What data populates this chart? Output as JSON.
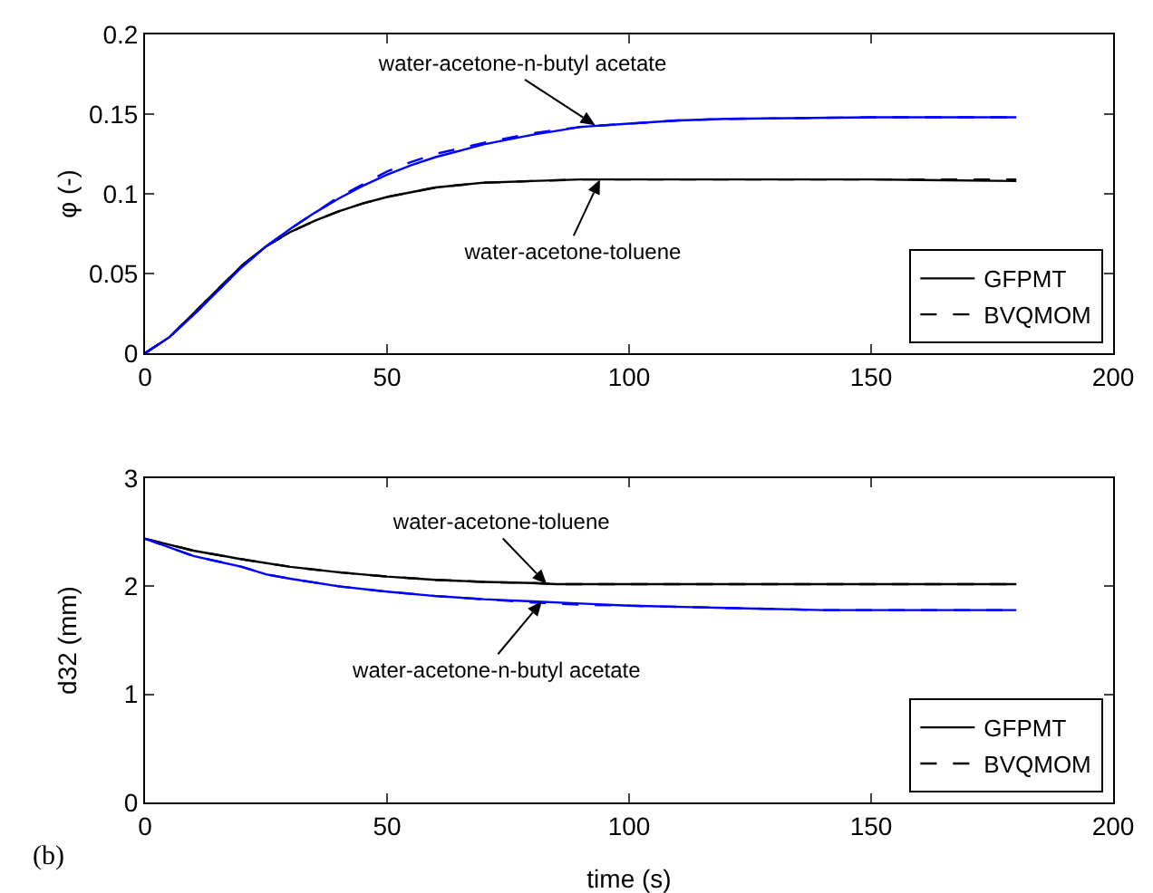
{
  "chart_data": [
    {
      "type": "line",
      "ylabel": "φ (-)",
      "xlim": [
        0,
        200
      ],
      "xticks": [
        0,
        50,
        100,
        150,
        200
      ],
      "ylim": [
        0,
        0.2
      ],
      "yticks": [
        0,
        0.05,
        0.1,
        0.15,
        0.2
      ],
      "grid": false,
      "legend": "bottom right",
      "marker": "none",
      "series": [
        {
          "name": "GFPMT",
          "color": "#000000",
          "line_style": "solid",
          "x": [
            0,
            5,
            10,
            15,
            20,
            25,
            30,
            35,
            40,
            45,
            50,
            55,
            60,
            70,
            80,
            90,
            100,
            120,
            150,
            180
          ],
          "values": [
            0,
            0.01,
            0.025,
            0.04,
            0.055,
            0.067,
            0.076,
            0.083,
            0.089,
            0.094,
            0.098,
            0.101,
            0.104,
            0.107,
            0.108,
            0.109,
            0.109,
            0.109,
            0.109,
            0.108
          ]
        },
        {
          "name": "BVQMOM",
          "color": "#000000",
          "line_style": "dashed",
          "x": [
            0,
            5,
            10,
            15,
            20,
            25,
            30,
            35,
            40,
            45,
            50,
            55,
            60,
            70,
            80,
            90,
            100,
            120,
            150,
            180
          ],
          "values": [
            0,
            0.01,
            0.025,
            0.04,
            0.055,
            0.067,
            0.076,
            0.083,
            0.089,
            0.094,
            0.098,
            0.101,
            0.104,
            0.107,
            0.108,
            0.109,
            0.109,
            0.109,
            0.109,
            0.109
          ]
        },
        {
          "color": "#0000ff",
          "line_style": "solid",
          "x": [
            0,
            5,
            10,
            15,
            20,
            25,
            30,
            35,
            40,
            45,
            50,
            55,
            60,
            70,
            80,
            90,
            100,
            110,
            120,
            150,
            180
          ],
          "values": [
            0,
            0.01,
            0.024,
            0.039,
            0.054,
            0.067,
            0.078,
            0.088,
            0.097,
            0.105,
            0.112,
            0.118,
            0.123,
            0.131,
            0.137,
            0.142,
            0.144,
            0.146,
            0.147,
            0.148,
            0.148
          ]
        },
        {
          "color": "#0000ff",
          "line_style": "dashed",
          "x": [
            0,
            5,
            10,
            15,
            20,
            25,
            30,
            35,
            40,
            45,
            50,
            55,
            60,
            70,
            80,
            90,
            100,
            110,
            120,
            150,
            180
          ],
          "values": [
            0,
            0.01,
            0.024,
            0.039,
            0.054,
            0.067,
            0.078,
            0.088,
            0.098,
            0.106,
            0.114,
            0.12,
            0.125,
            0.132,
            0.138,
            0.142,
            0.144,
            0.146,
            0.147,
            0.148,
            0.148
          ]
        }
      ],
      "annotations": [
        {
          "text": "water-acetone-n-butyl acetate",
          "x": 93,
          "y": 0.143
        },
        {
          "text": "water-acetone-toluene",
          "x": 94,
          "y": 0.109
        }
      ]
    },
    {
      "type": "line",
      "xlabel": "time (s)",
      "ylabel": "d32 (mm)",
      "xlim": [
        0,
        200
      ],
      "xticks": [
        0,
        50,
        100,
        150,
        200
      ],
      "ylim": [
        0,
        3
      ],
      "yticks": [
        0,
        1,
        2,
        3
      ],
      "grid": false,
      "legend": "bottom right",
      "marker": "none",
      "series": [
        {
          "name": "GFPMT",
          "color": "#000000",
          "line_style": "solid",
          "x": [
            0,
            10,
            20,
            30,
            40,
            50,
            60,
            70,
            80,
            85,
            100,
            150,
            180
          ],
          "values": [
            2.44,
            2.33,
            2.25,
            2.18,
            2.13,
            2.09,
            2.06,
            2.04,
            2.03,
            2.02,
            2.02,
            2.02,
            2.02
          ]
        },
        {
          "name": "BVQMOM",
          "color": "#000000",
          "line_style": "dashed",
          "x": [
            0,
            10,
            20,
            30,
            40,
            50,
            60,
            70,
            80,
            85,
            100,
            150,
            180
          ],
          "values": [
            2.44,
            2.33,
            2.25,
            2.18,
            2.13,
            2.09,
            2.06,
            2.04,
            2.03,
            2.02,
            2.02,
            2.02,
            2.02
          ]
        },
        {
          "color": "#0000ff",
          "line_style": "solid",
          "x": [
            0,
            10,
            20,
            25,
            30,
            40,
            50,
            60,
            70,
            80,
            90,
            100,
            120,
            140,
            160,
            180
          ],
          "values": [
            2.44,
            2.28,
            2.18,
            2.11,
            2.07,
            2,
            1.95,
            1.91,
            1.88,
            1.86,
            1.84,
            1.82,
            1.8,
            1.78,
            1.78,
            1.78
          ]
        },
        {
          "color": "#0000ff",
          "line_style": "dashed",
          "x": [
            0,
            10,
            20,
            25,
            30,
            40,
            50,
            60,
            70,
            80,
            90,
            100,
            120,
            140,
            160,
            180
          ],
          "values": [
            2.44,
            2.28,
            2.18,
            2.11,
            2.07,
            2,
            1.95,
            1.91,
            1.88,
            1.85,
            1.83,
            1.82,
            1.8,
            1.78,
            1.78,
            1.78
          ]
        }
      ],
      "annotations": [
        {
          "text": "water-acetone-toluene",
          "x": 83,
          "y": 2.02
        },
        {
          "text": "water-acetone-n-butyl acetate",
          "x": 82,
          "y": 1.86
        },
        "(b)"
      ]
    }
  ]
}
